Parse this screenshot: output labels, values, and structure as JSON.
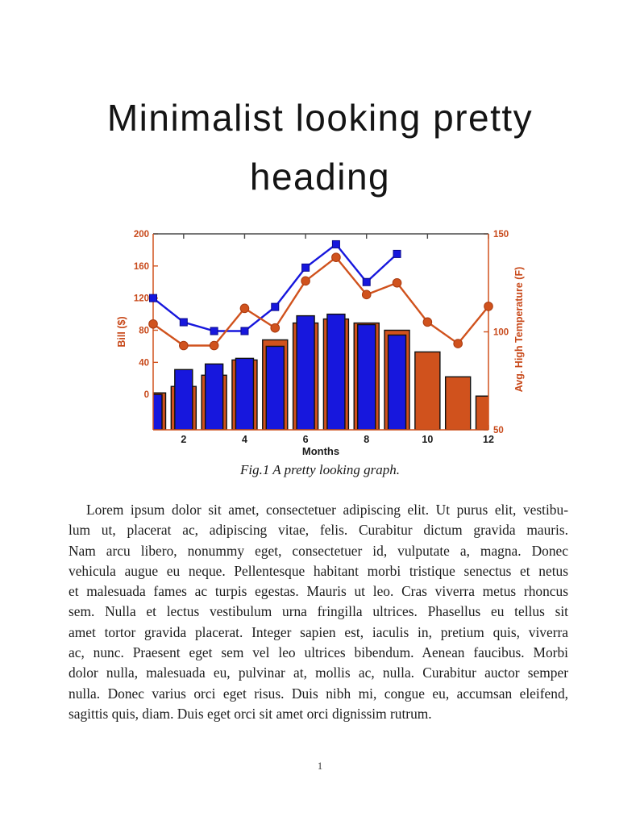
{
  "page": {
    "heading_line1": "Minimalist looking pretty",
    "heading_line2": "heading",
    "caption": "Fig.1 A pretty looking graph.",
    "page_number": "1",
    "body_lines": [
      "Lorem ipsum dolor sit amet, consectetuer adipiscing elit.  Ut purus elit, vestibu-",
      "lum ut, placerat ac, adipiscing vitae, felis.  Curabitur dictum gravida mauris.",
      "Nam arcu libero, nonummy eget, consectetuer id, vulputate a, magna.  Donec",
      "vehicula augue eu neque. Pellentesque habitant morbi tristique senectus et netus",
      "et malesuada fames ac turpis egestas. Mauris ut leo. Cras viverra metus rhoncus",
      "sem.  Nulla et lectus vestibulum urna fringilla ultrices.  Phasellus eu tellus sit",
      "amet tortor gravida placerat. Integer sapien est, iaculis in, pretium quis, viverra",
      "ac, nunc.  Praesent eget sem vel leo ultrices bibendum.  Aenean faucibus.  Morbi",
      "dolor nulla, malesuada eu, pulvinar at, mollis ac, nulla.  Curabitur auctor semper",
      "nulla.  Donec varius orci eget risus.  Duis nibh mi, congue eu, accumsan eleifend,",
      "sagittis quis, diam.  Duis eget orci sit amet orci dignissim rutrum."
    ]
  },
  "chart_data": {
    "type": "combo",
    "title": "",
    "xlabel": "Months",
    "ylabel_left": "Bill ($)",
    "ylabel_right": "Avg. High Temperature (F)",
    "xlim": [
      1,
      12
    ],
    "xticks": [
      2,
      4,
      6,
      8,
      10,
      12
    ],
    "ylim_left": [
      -44,
      200
    ],
    "yticks_left": [
      0,
      40,
      80,
      120,
      160,
      200
    ],
    "ylim_right": [
      50,
      150
    ],
    "yticks_right": [
      50,
      100,
      150
    ],
    "grid": false,
    "legend": "none",
    "bars_note": "two overlapped bar series centered on each month, bars extend down to the bottom edge of the axes; orange bars are wider and drawn behind the narrower blue bars",
    "series": [
      {
        "name": "orange-bars",
        "type": "bar",
        "axis": "left",
        "color": "#d0521d",
        "months": [
          1,
          2,
          3,
          4,
          5,
          6,
          7,
          8,
          9,
          10,
          11,
          12
        ],
        "values": [
          2,
          10,
          24,
          43,
          68,
          89,
          94,
          89,
          80,
          53,
          22,
          -2
        ]
      },
      {
        "name": "blue-bars",
        "type": "bar",
        "axis": "left",
        "color": "#1717dd",
        "months": [
          1,
          2,
          3,
          4,
          5,
          6,
          7,
          8,
          9
        ],
        "values": [
          0,
          31,
          38,
          45,
          60,
          98,
          100,
          87,
          74
        ]
      },
      {
        "name": "blue-line",
        "type": "line",
        "marker": "square",
        "axis": "left",
        "color": "#1717dd",
        "months": [
          1,
          2,
          3,
          4,
          5,
          6,
          7,
          8,
          9
        ],
        "values": [
          120,
          90,
          79,
          79,
          109,
          158,
          187,
          140,
          175
        ]
      },
      {
        "name": "orange-line",
        "type": "line",
        "marker": "circle",
        "axis": "right",
        "color": "#d0521d",
        "months": [
          1,
          2,
          3,
          4,
          5,
          6,
          7,
          8,
          9,
          10,
          11,
          12
        ],
        "values": [
          104,
          93,
          93,
          112,
          102,
          126,
          138,
          119,
          125,
          105,
          94,
          113
        ]
      }
    ],
    "colors": {
      "blue": "#1717dd",
      "orange": "#d0521d",
      "tick_label_orange": "#c8491a",
      "top_spine": "#4a4a4a",
      "x_tick_label": "#1a1a1a"
    }
  }
}
